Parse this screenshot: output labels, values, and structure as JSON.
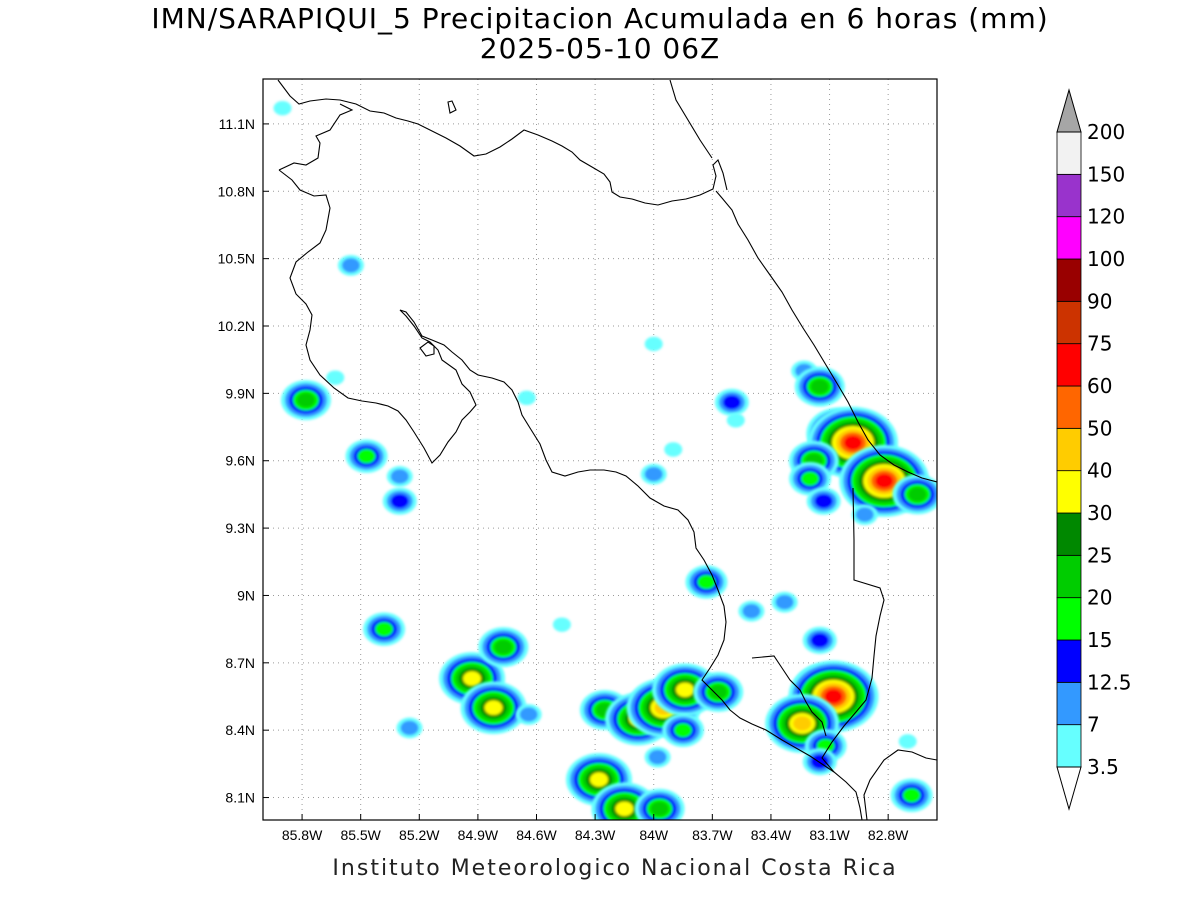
{
  "title": {
    "line1": "IMN/SARAPIQUI_5 Precipitacion Acumulada en 6 horas (mm)",
    "line2": "2025-05-10 06Z"
  },
  "footer": "Instituto Meteorologico Nacional Costa Rica",
  "map": {
    "lon_range": [
      -86.0,
      -82.55
    ],
    "lat_range": [
      8.0,
      11.3
    ],
    "lon_ticks": [
      {
        "v": -85.8,
        "label": "85.8W"
      },
      {
        "v": -85.5,
        "label": "85.5W"
      },
      {
        "v": -85.2,
        "label": "85.2W"
      },
      {
        "v": -84.9,
        "label": "84.9W"
      },
      {
        "v": -84.6,
        "label": "84.6W"
      },
      {
        "v": -84.3,
        "label": "84.3W"
      },
      {
        "v": -84.0,
        "label": "84W"
      },
      {
        "v": -83.7,
        "label": "83.7W"
      },
      {
        "v": -83.4,
        "label": "83.4W"
      },
      {
        "v": -83.1,
        "label": "83.1W"
      },
      {
        "v": -82.8,
        "label": "82.8W"
      }
    ],
    "lat_ticks": [
      {
        "v": 11.1,
        "label": "11.1N"
      },
      {
        "v": 10.8,
        "label": "10.8N"
      },
      {
        "v": 10.5,
        "label": "10.5N"
      },
      {
        "v": 10.2,
        "label": "10.2N"
      },
      {
        "v": 9.9,
        "label": "9.9N"
      },
      {
        "v": 9.6,
        "label": "9.6N"
      },
      {
        "v": 9.3,
        "label": "9.3N"
      },
      {
        "v": 9.0,
        "label": "9N"
      },
      {
        "v": 8.7,
        "label": "8.7N"
      },
      {
        "v": 8.4,
        "label": "8.4N"
      },
      {
        "v": 8.1,
        "label": "8.1N"
      }
    ],
    "grid": "dotted"
  },
  "colorbar": {
    "levels": [
      {
        "label": "3.5",
        "color": "#66ffff"
      },
      {
        "label": "7",
        "color": "#3399ff"
      },
      {
        "label": "12.5",
        "color": "#0000ff"
      },
      {
        "label": "15",
        "color": "#00ff00"
      },
      {
        "label": "20",
        "color": "#00cc00"
      },
      {
        "label": "25",
        "color": "#008800"
      },
      {
        "label": "30",
        "color": "#ffff00"
      },
      {
        "label": "40",
        "color": "#ffcc00"
      },
      {
        "label": "50",
        "color": "#ff6600"
      },
      {
        "label": "60",
        "color": "#ff0000"
      },
      {
        "label": "75",
        "color": "#cc3300"
      },
      {
        "label": "90",
        "color": "#990000"
      },
      {
        "label": "100",
        "color": "#ff00ff"
      },
      {
        "label": "120",
        "color": "#9933cc"
      },
      {
        "label": "150",
        "color": "#f2f2f2"
      },
      {
        "label": "200",
        "color": "#a6a6a6"
      }
    ]
  },
  "cells": [
    {
      "lon": -85.9,
      "lat": 11.17,
      "mm": 3.5
    },
    {
      "lon": -85.55,
      "lat": 10.47,
      "mm": 7
    },
    {
      "lon": -85.78,
      "lat": 9.87,
      "mm": 20
    },
    {
      "lon": -85.63,
      "lat": 9.97,
      "mm": 3.5
    },
    {
      "lon": -85.47,
      "lat": 9.62,
      "mm": 15
    },
    {
      "lon": -85.3,
      "lat": 9.53,
      "mm": 7
    },
    {
      "lon": -85.3,
      "lat": 9.42,
      "mm": 12.5
    },
    {
      "lon": -84.65,
      "lat": 9.88,
      "mm": 3.5
    },
    {
      "lon": -84.0,
      "lat": 10.12,
      "mm": 3.5
    },
    {
      "lon": -84.0,
      "lat": 9.54,
      "mm": 7
    },
    {
      "lon": -83.9,
      "lat": 9.65,
      "mm": 3.5
    },
    {
      "lon": -83.6,
      "lat": 9.86,
      "mm": 12.5
    },
    {
      "lon": -83.58,
      "lat": 9.78,
      "mm": 3.5
    },
    {
      "lon": -83.23,
      "lat": 10.0,
      "mm": 7
    },
    {
      "lon": -83.15,
      "lat": 9.93,
      "mm": 20
    },
    {
      "lon": -83.05,
      "lat": 9.72,
      "mm": 30
    },
    {
      "lon": -82.98,
      "lat": 9.68,
      "mm": 60
    },
    {
      "lon": -83.18,
      "lat": 9.6,
      "mm": 20
    },
    {
      "lon": -83.2,
      "lat": 9.52,
      "mm": 15
    },
    {
      "lon": -82.82,
      "lat": 9.51,
      "mm": 60
    },
    {
      "lon": -82.65,
      "lat": 9.45,
      "mm": 20
    },
    {
      "lon": -83.13,
      "lat": 9.42,
      "mm": 12.5
    },
    {
      "lon": -82.92,
      "lat": 9.36,
      "mm": 7
    },
    {
      "lon": -83.73,
      "lat": 9.06,
      "mm": 15
    },
    {
      "lon": -83.5,
      "lat": 8.93,
      "mm": 7
    },
    {
      "lon": -83.33,
      "lat": 8.97,
      "mm": 7
    },
    {
      "lon": -83.15,
      "lat": 8.8,
      "mm": 12.5
    },
    {
      "lon": -83.12,
      "lat": 8.58,
      "mm": 30
    },
    {
      "lon": -83.08,
      "lat": 8.55,
      "mm": 60
    },
    {
      "lon": -83.24,
      "lat": 8.43,
      "mm": 40
    },
    {
      "lon": -83.12,
      "lat": 8.33,
      "mm": 15
    },
    {
      "lon": -83.15,
      "lat": 8.26,
      "mm": 12.5
    },
    {
      "lon": -85.38,
      "lat": 8.85,
      "mm": 15
    },
    {
      "lon": -84.93,
      "lat": 8.63,
      "mm": 30
    },
    {
      "lon": -84.77,
      "lat": 8.77,
      "mm": 20
    },
    {
      "lon": -84.82,
      "lat": 8.5,
      "mm": 30
    },
    {
      "lon": -84.64,
      "lat": 8.47,
      "mm": 7
    },
    {
      "lon": -84.47,
      "lat": 8.87,
      "mm": 3.5
    },
    {
      "lon": -84.25,
      "lat": 8.49,
      "mm": 20
    },
    {
      "lon": -84.08,
      "lat": 8.45,
      "mm": 30
    },
    {
      "lon": -83.95,
      "lat": 8.5,
      "mm": 40
    },
    {
      "lon": -83.84,
      "lat": 8.58,
      "mm": 30
    },
    {
      "lon": -83.67,
      "lat": 8.57,
      "mm": 20
    },
    {
      "lon": -83.85,
      "lat": 8.4,
      "mm": 15
    },
    {
      "lon": -83.98,
      "lat": 8.28,
      "mm": 7
    },
    {
      "lon": -84.28,
      "lat": 8.18,
      "mm": 30
    },
    {
      "lon": -84.15,
      "lat": 8.05,
      "mm": 30
    },
    {
      "lon": -83.97,
      "lat": 8.05,
      "mm": 20
    },
    {
      "lon": -82.68,
      "lat": 8.11,
      "mm": 15
    },
    {
      "lon": -82.7,
      "lat": 8.35,
      "mm": 3.5
    },
    {
      "lon": -85.25,
      "lat": 8.41,
      "mm": 7
    }
  ]
}
